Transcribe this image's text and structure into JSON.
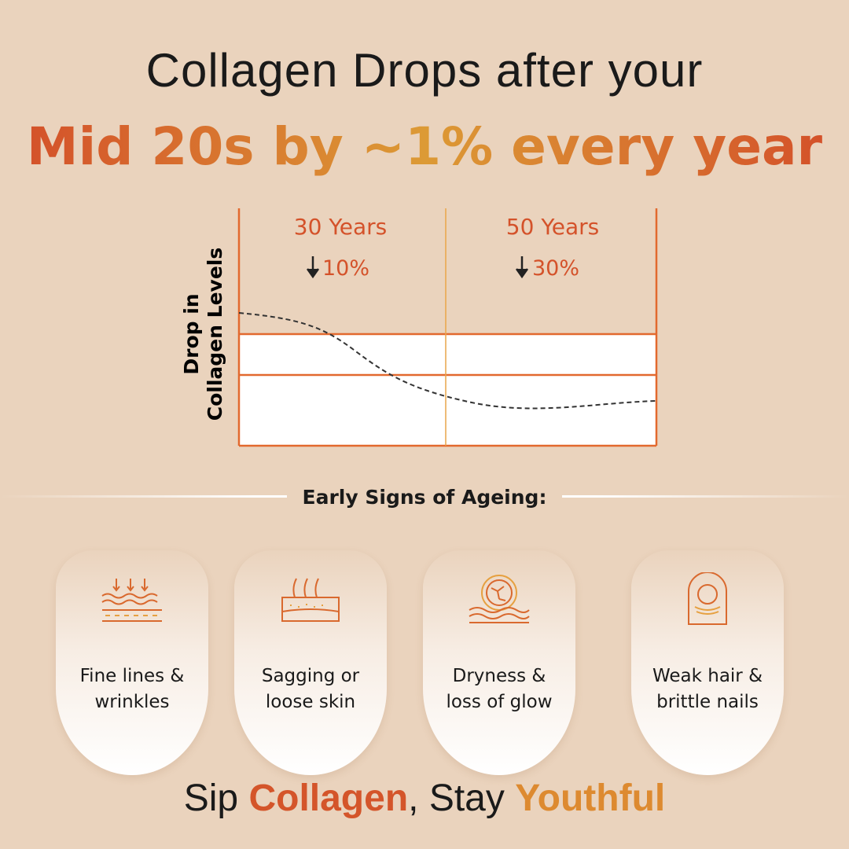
{
  "header": {
    "line1": "Collagen Drops after your",
    "line2": "Mid 20s by ~1% every year"
  },
  "graphic": {
    "axis_label": [
      "Drop in",
      "Collagen Levels"
    ],
    "columns": [
      {
        "label": "30 Years",
        "drop": "10%"
      },
      {
        "label": "50 Years",
        "drop": "30%"
      }
    ]
  },
  "section_title": "Early Signs of Ageing:",
  "cards": [
    {
      "lines": [
        "Fine lines &",
        "wrinkles"
      ]
    },
    {
      "lines": [
        "Sagging or",
        "loose skin"
      ]
    },
    {
      "lines": [
        "Dryness &",
        "loss of glow"
      ]
    },
    {
      "lines": [
        "Weak hair &",
        "brittle nails"
      ]
    }
  ],
  "footer": {
    "parts": [
      "Sip",
      "Collagen",
      ", Stay",
      "Youthful"
    ]
  }
}
